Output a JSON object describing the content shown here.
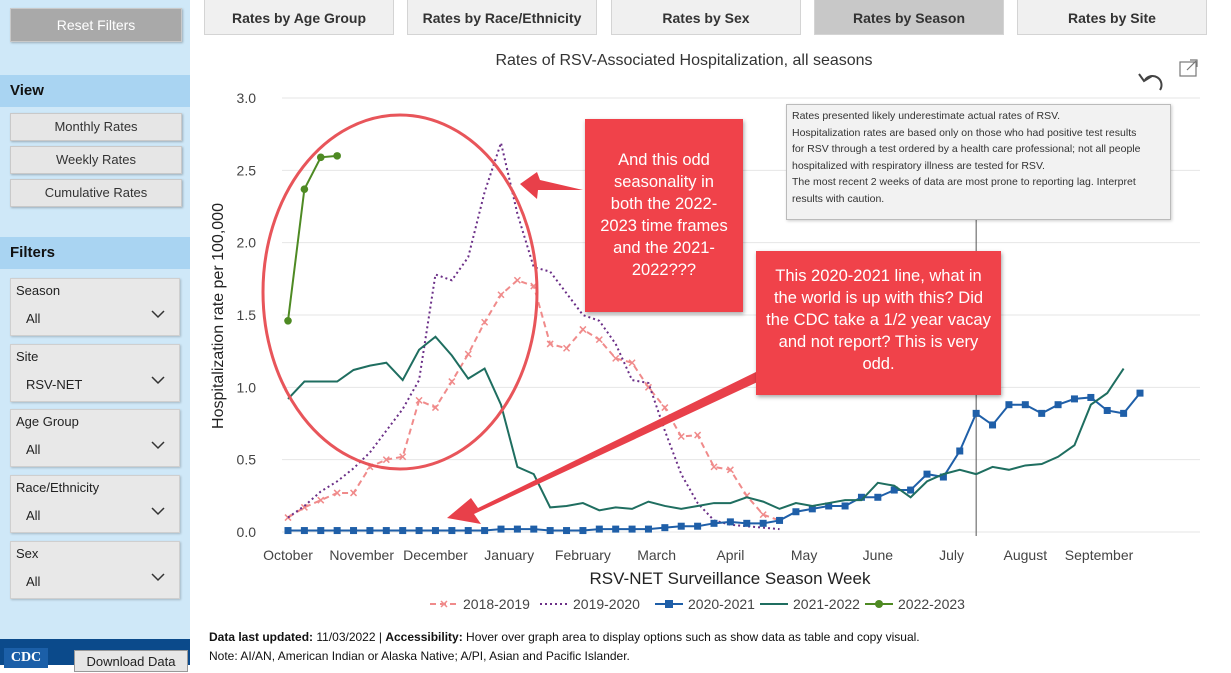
{
  "sidebar": {
    "reset_label": "Reset Filters",
    "view_heading": "View",
    "view_options": [
      "Monthly Rates",
      "Weekly Rates",
      "Cumulative Rates"
    ],
    "filters_heading": "Filters",
    "filters": [
      {
        "label": "Season",
        "value": "All"
      },
      {
        "label": "Site",
        "value": "RSV-NET"
      },
      {
        "label": "Age Group",
        "value": "All"
      },
      {
        "label": "Race/Ethnicity",
        "value": "All"
      },
      {
        "label": "Sex",
        "value": "All"
      }
    ],
    "logo_text": "CDC",
    "download_label": "Download Data"
  },
  "tabs": [
    {
      "label": "Rates by Age Group",
      "active": false
    },
    {
      "label": "Rates by Race/Ethnicity",
      "active": false
    },
    {
      "label": "Rates by Sex",
      "active": false
    },
    {
      "label": "Rates by Season",
      "active": true
    },
    {
      "label": "Rates by Site",
      "active": false
    }
  ],
  "notes": [
    "Rates presented likely underestimate actual rates of RSV.",
    "Hospitalization rates are based only on those who had positive test results",
    "for RSV through a test ordered by a health care professional; not all people",
    "hospitalized with respiratory illness are tested for RSV.",
    "The most recent 2 weeks of data are most prone to reporting lag. Interpret",
    "results with caution."
  ],
  "annotations": {
    "seasonality": "And this odd seasonality in both the 2022-2023 time frames and the 2021-2022???",
    "line_2020": "This 2020-2021 line, what in the world is up with this? Did the CDC take a 1/2 year vacay and not report?  This is very odd."
  },
  "footer": {
    "updated_label": "Data last updated:",
    "updated_value": "11/03/2022",
    "separator": " | ",
    "accessibility_label": "Accessibility:",
    "accessibility_text": "Hover over graph area to display options such as show data as table and copy visual.",
    "note": "Note: AI/AN, American Indian or Alaska Native; A/PI, Asian and Pacific Islander."
  },
  "chart_data": {
    "type": "line",
    "title": "Rates of RSV-Associated Hospitalization, all seasons",
    "xlabel": "RSV-NET Surveillance Season Week",
    "ylabel": "Hospitalization rate per 100,000",
    "ylim": [
      0,
      3.0
    ],
    "yticks": [
      "0.0",
      "0.5",
      "1.0",
      "1.5",
      "2.0",
      "2.5",
      "3.0"
    ],
    "xlim": [
      0,
      52
    ],
    "month_ticks": [
      {
        "label": "October",
        "week": 0
      },
      {
        "label": "November",
        "week": 4.5
      },
      {
        "label": "December",
        "week": 9
      },
      {
        "label": "January",
        "week": 13.5
      },
      {
        "label": "February",
        "week": 18
      },
      {
        "label": "March",
        "week": 22.5
      },
      {
        "label": "April",
        "week": 27
      },
      {
        "label": "May",
        "week": 31.5
      },
      {
        "label": "June",
        "week": 36
      },
      {
        "label": "July",
        "week": 40.5
      },
      {
        "label": "August",
        "week": 45
      },
      {
        "label": "September",
        "week": 49.5
      }
    ],
    "reference_week": 42,
    "series": [
      {
        "name": "2018-2019",
        "color": "#f08b8b",
        "style": "dashed-x",
        "values": [
          0.1,
          0.17,
          0.22,
          0.27,
          0.27,
          0.45,
          0.5,
          0.52,
          0.91,
          0.86,
          1.04,
          1.23,
          1.45,
          1.64,
          1.74,
          1.7,
          1.3,
          1.27,
          1.4,
          1.33,
          1.2,
          1.17,
          1.0,
          0.86,
          0.66,
          0.67,
          0.45,
          0.43,
          0.25,
          0.12,
          0.08
        ]
      },
      {
        "name": "2019-2020",
        "color": "#6b2f87",
        "style": "dotted",
        "values": [
          0.1,
          0.18,
          0.28,
          0.35,
          0.44,
          0.55,
          0.7,
          0.85,
          1.05,
          1.78,
          1.74,
          1.9,
          2.35,
          2.69,
          2.2,
          1.83,
          1.8,
          1.65,
          1.5,
          1.46,
          1.3,
          1.05,
          1.03,
          0.7,
          0.4,
          0.2,
          0.08,
          0.05,
          0.04,
          0.03,
          0.02
        ]
      },
      {
        "name": "2020-2021",
        "color": "#1f5fa8",
        "style": "square",
        "values": [
          0.01,
          0.01,
          0.01,
          0.01,
          0.01,
          0.01,
          0.01,
          0.01,
          0.01,
          0.01,
          0.01,
          0.01,
          0.01,
          0.02,
          0.02,
          0.02,
          0.01,
          0.01,
          0.01,
          0.02,
          0.02,
          0.02,
          0.02,
          0.03,
          0.04,
          0.04,
          0.06,
          0.07,
          0.06,
          0.06,
          0.08,
          0.14,
          0.16,
          0.18,
          0.18,
          0.24,
          0.24,
          0.29,
          0.29,
          0.4,
          0.38,
          0.56,
          0.82,
          0.74,
          0.88,
          0.88,
          0.82,
          0.88,
          0.92,
          0.93,
          0.84,
          0.82,
          0.96
        ]
      },
      {
        "name": "2021-2022",
        "color": "#1f6e60",
        "style": "solid",
        "values": [
          0.92,
          1.04,
          1.04,
          1.04,
          1.12,
          1.15,
          1.17,
          1.05,
          1.26,
          1.35,
          1.22,
          1.06,
          1.13,
          0.88,
          0.45,
          0.4,
          0.17,
          0.18,
          0.2,
          0.15,
          0.17,
          0.16,
          0.21,
          0.18,
          0.16,
          0.18,
          0.2,
          0.2,
          0.24,
          0.21,
          0.16,
          0.2,
          0.18,
          0.2,
          0.22,
          0.22,
          0.34,
          0.32,
          0.24,
          0.35,
          0.4,
          0.43,
          0.4,
          0.45,
          0.43,
          0.46,
          0.47,
          0.52,
          0.6,
          0.88,
          0.96,
          1.13
        ]
      },
      {
        "name": "2022-2023",
        "color": "#4e8a23",
        "style": "dot",
        "values": [
          1.46,
          2.37,
          2.59,
          2.6
        ]
      }
    ]
  }
}
